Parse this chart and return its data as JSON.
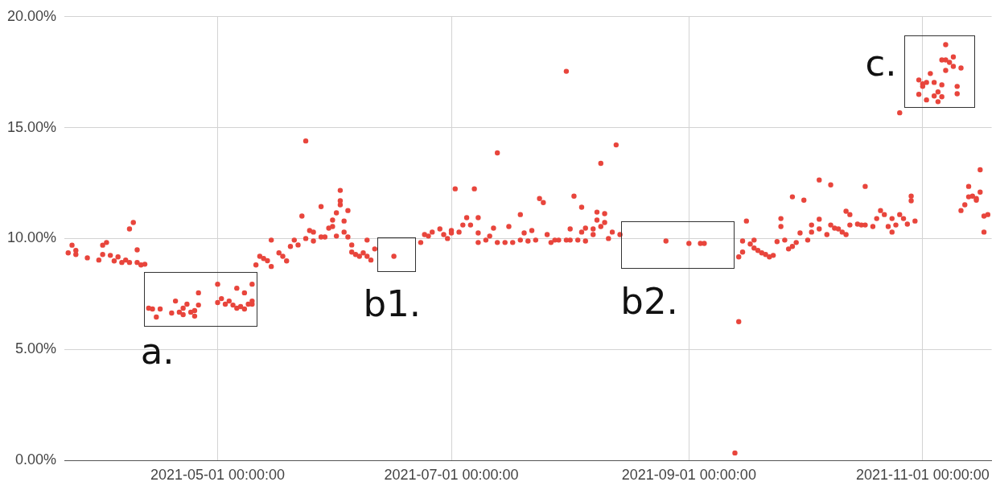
{
  "chart_data": {
    "type": "scatter",
    "color": "#e8453c",
    "marker": "circle",
    "grid": true,
    "xlim": [
      "2021-03-22",
      "2021-11-19"
    ],
    "xticks": [
      {
        "value": "2021-05-01",
        "label": "2021-05-01 00:00:00"
      },
      {
        "value": "2021-07-01",
        "label": "2021-07-01 00:00:00"
      },
      {
        "value": "2021-09-01",
        "label": "2021-09-01 00:00:00"
      },
      {
        "value": "2021-11-01",
        "label": "2021-11-01 00:00:00"
      }
    ],
    "ylim": [
      0,
      20
    ],
    "yticks": [
      {
        "value": 0,
        "label": "0.00%"
      },
      {
        "value": 5,
        "label": "5.00%"
      },
      {
        "value": 10,
        "label": "10.00%"
      },
      {
        "value": 15,
        "label": "15.00%"
      },
      {
        "value": 20,
        "label": "20.00%"
      }
    ],
    "x": [
      "2021-03-23",
      "2021-03-24",
      "2021-03-25",
      "2021-03-25",
      "2021-03-28",
      "2021-03-31",
      "2021-04-01",
      "2021-04-01",
      "2021-04-02",
      "2021-04-03",
      "2021-04-04",
      "2021-04-05",
      "2021-04-06",
      "2021-04-07",
      "2021-04-08",
      "2021-04-08",
      "2021-04-09",
      "2021-04-10",
      "2021-04-10",
      "2021-04-11",
      "2021-04-12",
      "2021-04-13",
      "2021-04-14",
      "2021-04-15",
      "2021-04-16",
      "2021-04-19",
      "2021-04-20",
      "2021-04-21",
      "2021-04-22",
      "2021-04-22",
      "2021-04-23",
      "2021-04-24",
      "2021-04-25",
      "2021-04-25",
      "2021-04-26",
      "2021-04-26",
      "2021-05-01",
      "2021-05-01",
      "2021-05-02",
      "2021-05-03",
      "2021-05-04",
      "2021-05-05",
      "2021-05-06",
      "2021-05-06",
      "2021-05-07",
      "2021-05-08",
      "2021-05-08",
      "2021-05-09",
      "2021-05-10",
      "2021-05-10",
      "2021-05-10",
      "2021-05-11",
      "2021-05-12",
      "2021-05-13",
      "2021-05-14",
      "2021-05-15",
      "2021-05-15",
      "2021-05-17",
      "2021-05-18",
      "2021-05-19",
      "2021-05-20",
      "2021-05-21",
      "2021-05-22",
      "2021-05-23",
      "2021-05-24",
      "2021-05-24",
      "2021-05-25",
      "2021-05-26",
      "2021-05-26",
      "2021-05-28",
      "2021-05-28",
      "2021-05-29",
      "2021-05-30",
      "2021-05-31",
      "2021-05-31",
      "2021-06-01",
      "2021-06-01",
      "2021-06-02",
      "2021-06-02",
      "2021-06-02",
      "2021-06-03",
      "2021-06-03",
      "2021-06-04",
      "2021-06-04",
      "2021-06-05",
      "2021-06-05",
      "2021-06-06",
      "2021-06-07",
      "2021-06-08",
      "2021-06-09",
      "2021-06-09",
      "2021-06-10",
      "2021-06-11",
      "2021-06-16",
      "2021-06-23",
      "2021-06-24",
      "2021-06-25",
      "2021-06-26",
      "2021-06-28",
      "2021-06-29",
      "2021-06-30",
      "2021-07-01",
      "2021-07-01",
      "2021-07-02",
      "2021-07-03",
      "2021-07-04",
      "2021-07-05",
      "2021-07-06",
      "2021-07-07",
      "2021-07-08",
      "2021-07-08",
      "2021-07-08",
      "2021-07-10",
      "2021-07-11",
      "2021-07-12",
      "2021-07-13",
      "2021-07-13",
      "2021-07-15",
      "2021-07-16",
      "2021-07-17",
      "2021-07-19",
      "2021-07-19",
      "2021-07-20",
      "2021-07-21",
      "2021-07-22",
      "2021-07-23",
      "2021-07-24",
      "2021-07-25",
      "2021-07-26",
      "2021-07-27",
      "2021-07-28",
      "2021-07-29",
      "2021-07-31",
      "2021-07-31",
      "2021-08-01",
      "2021-08-01",
      "2021-08-02",
      "2021-08-03",
      "2021-08-04",
      "2021-08-04",
      "2021-08-05",
      "2021-08-05",
      "2021-08-07",
      "2021-08-07",
      "2021-08-08",
      "2021-08-08",
      "2021-08-09",
      "2021-08-09",
      "2021-08-10",
      "2021-08-10",
      "2021-08-11",
      "2021-08-12",
      "2021-08-13",
      "2021-08-14",
      "2021-08-26",
      "2021-09-01",
      "2021-09-04",
      "2021-09-05",
      "2021-09-13",
      "2021-09-14",
      "2021-09-14",
      "2021-09-15",
      "2021-09-15",
      "2021-09-16",
      "2021-09-17",
      "2021-09-18",
      "2021-09-18",
      "2021-09-19",
      "2021-09-20",
      "2021-09-21",
      "2021-09-22",
      "2021-09-23",
      "2021-09-24",
      "2021-09-25",
      "2021-09-25",
      "2021-09-26",
      "2021-09-27",
      "2021-09-28",
      "2021-09-28",
      "2021-09-29",
      "2021-09-30",
      "2021-10-01",
      "2021-10-02",
      "2021-10-03",
      "2021-10-03",
      "2021-10-05",
      "2021-10-05",
      "2021-10-05",
      "2021-10-07",
      "2021-10-08",
      "2021-10-08",
      "2021-10-09",
      "2021-10-10",
      "2021-10-11",
      "2021-10-12",
      "2021-10-12",
      "2021-10-13",
      "2021-10-13",
      "2021-10-15",
      "2021-10-16",
      "2021-10-17",
      "2021-10-17",
      "2021-10-19",
      "2021-10-20",
      "2021-10-21",
      "2021-10-22",
      "2021-10-23",
      "2021-10-24",
      "2021-10-24",
      "2021-10-25",
      "2021-10-26",
      "2021-10-26",
      "2021-10-27",
      "2021-10-28",
      "2021-10-29",
      "2021-10-29",
      "2021-10-30",
      "2021-10-31",
      "2021-10-31",
      "2021-11-01",
      "2021-11-01",
      "2021-11-02",
      "2021-11-02",
      "2021-11-03",
      "2021-11-04",
      "2021-11-04",
      "2021-11-05",
      "2021-11-05",
      "2021-11-06",
      "2021-11-06",
      "2021-11-06",
      "2021-11-07",
      "2021-11-07",
      "2021-11-07",
      "2021-11-08",
      "2021-11-09",
      "2021-11-09",
      "2021-11-10",
      "2021-11-10",
      "2021-11-11",
      "2021-11-11",
      "2021-11-12",
      "2021-11-13",
      "2021-11-13",
      "2021-11-14",
      "2021-11-15",
      "2021-11-15",
      "2021-11-16",
      "2021-11-16",
      "2021-11-17",
      "2021-11-17",
      "2021-11-18"
    ],
    "values": [
      9.35,
      9.7,
      9.46,
      9.28,
      9.13,
      9.03,
      9.7,
      9.28,
      9.82,
      9.24,
      8.99,
      9.17,
      8.92,
      9.03,
      8.92,
      10.43,
      10.72,
      9.49,
      8.92,
      8.81,
      8.84,
      6.86,
      6.82,
      6.46,
      6.82,
      6.64,
      7.18,
      6.68,
      6.86,
      6.57,
      7.04,
      6.68,
      6.5,
      6.75,
      7.55,
      7.0,
      7.94,
      7.11,
      7.29,
      7.04,
      7.18,
      7.0,
      6.86,
      7.76,
      6.93,
      6.82,
      7.55,
      7.04,
      7.18,
      7.94,
      7.04,
      8.81,
      9.2,
      9.1,
      9.0,
      9.93,
      8.74,
      9.35,
      9.2,
      8.99,
      9.64,
      9.93,
      9.71,
      11.01,
      10.0,
      14.4,
      10.36,
      9.89,
      10.29,
      11.44,
      10.07,
      10.07,
      10.47,
      10.83,
      10.54,
      10.11,
      11.16,
      11.7,
      12.17,
      11.52,
      10.79,
      10.29,
      11.26,
      10.07,
      9.71,
      9.39,
      9.28,
      9.2,
      9.35,
      9.93,
      9.2,
      9.03,
      9.53,
      9.2,
      9.82,
      10.18,
      10.11,
      10.29,
      10.43,
      10.18,
      10.0,
      10.36,
      10.25,
      12.24,
      10.29,
      10.61,
      10.94,
      10.61,
      12.24,
      9.82,
      10.94,
      10.25,
      9.93,
      10.11,
      10.47,
      13.86,
      9.82,
      9.82,
      10.54,
      9.82,
      9.93,
      11.08,
      10.25,
      9.89,
      10.36,
      9.93,
      11.8,
      11.62,
      10.18,
      9.82,
      9.93,
      9.93,
      17.54,
      9.93,
      10.43,
      9.93,
      11.91,
      9.93,
      11.41,
      10.29,
      9.89,
      10.47,
      10.43,
      10.18,
      11.19,
      10.83,
      13.39,
      10.54,
      11.12,
      10.72,
      10.0,
      10.29,
      14.22,
      10.18,
      9.89,
      9.78,
      9.78,
      9.78,
      0.33,
      6.25,
      9.17,
      9.39,
      9.89,
      10.79,
      9.75,
      9.93,
      9.57,
      9.46,
      9.35,
      9.28,
      9.17,
      9.24,
      9.86,
      10.54,
      10.9,
      9.93,
      9.53,
      9.64,
      11.88,
      9.82,
      10.25,
      11.73,
      9.93,
      10.61,
      10.29,
      10.87,
      12.64,
      10.43,
      10.18,
      12.42,
      10.61,
      10.47,
      10.43,
      10.29,
      11.23,
      10.18,
      11.08,
      10.61,
      10.65,
      10.61,
      12.35,
      10.61,
      10.54,
      10.9,
      11.26,
      11.08,
      10.54,
      10.9,
      10.29,
      10.61,
      15.67,
      11.08,
      10.9,
      10.65,
      11.91,
      11.7,
      10.79,
      16.5,
      17.15,
      16.97,
      16.86,
      16.25,
      17.04,
      17.44,
      16.43,
      17.04,
      16.61,
      16.17,
      16.93,
      16.39,
      18.05,
      18.74,
      17.58,
      18.05,
      17.94,
      18.19,
      17.76,
      16.86,
      16.53,
      17.69,
      11.26,
      11.52,
      11.88,
      12.35,
      11.91,
      11.8,
      11.73,
      12.09,
      13.1,
      11.01,
      10.29,
      11.08
    ],
    "annotations": [
      {
        "text": "a.",
        "x": "2021-04-26",
        "y": 7.0
      },
      {
        "text": "b1.",
        "x": "2021-06-16",
        "y": 9.2
      },
      {
        "text": "b2.",
        "x": "2021-09-01",
        "y": 9.78
      },
      {
        "text": "c.",
        "x": "2021-11-07",
        "y": 18.74
      }
    ]
  }
}
